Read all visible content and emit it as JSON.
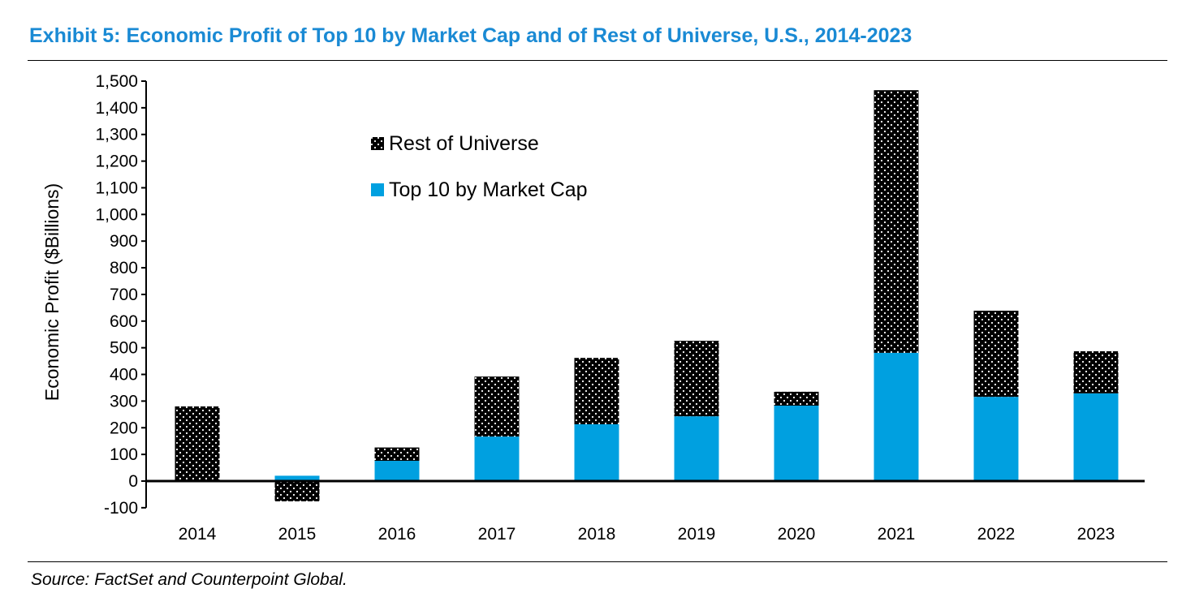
{
  "chart_data": {
    "type": "bar",
    "stacked": true,
    "title": "Exhibit 5: Economic Profit of Top 10 by Market Cap and of Rest of Universe, U.S., 2014-2023",
    "xlabel": "",
    "ylabel": "Economic Profit ($Billions)",
    "ylim": [
      -100,
      1500
    ],
    "yticks": [
      -100,
      0,
      100,
      200,
      300,
      400,
      500,
      600,
      700,
      800,
      900,
      1000,
      1100,
      1200,
      1300,
      1400,
      1500
    ],
    "ytick_labels": [
      "-100",
      "0",
      "100",
      "200",
      "300",
      "400",
      "500",
      "600",
      "700",
      "800",
      "900",
      "1,000",
      "1,100",
      "1,200",
      "1,300",
      "1,400",
      "1,500"
    ],
    "grid": false,
    "legend_position": "top-center",
    "categories": [
      "2014",
      "2015",
      "2016",
      "2017",
      "2018",
      "2019",
      "2020",
      "2021",
      "2022",
      "2023"
    ],
    "series": [
      {
        "name": "Top 10 by Market Cap",
        "color": "#00a0e0",
        "values": [
          3,
          20,
          76,
          167,
          213,
          243,
          283,
          481,
          316,
          329
        ]
      },
      {
        "name": "Rest of Universe",
        "color": "#000000",
        "pattern": "dotted",
        "values": [
          277,
          -76,
          50,
          225,
          249,
          283,
          52,
          985,
          323,
          158
        ]
      }
    ]
  },
  "source": "Source: FactSet and Counterpoint Global."
}
